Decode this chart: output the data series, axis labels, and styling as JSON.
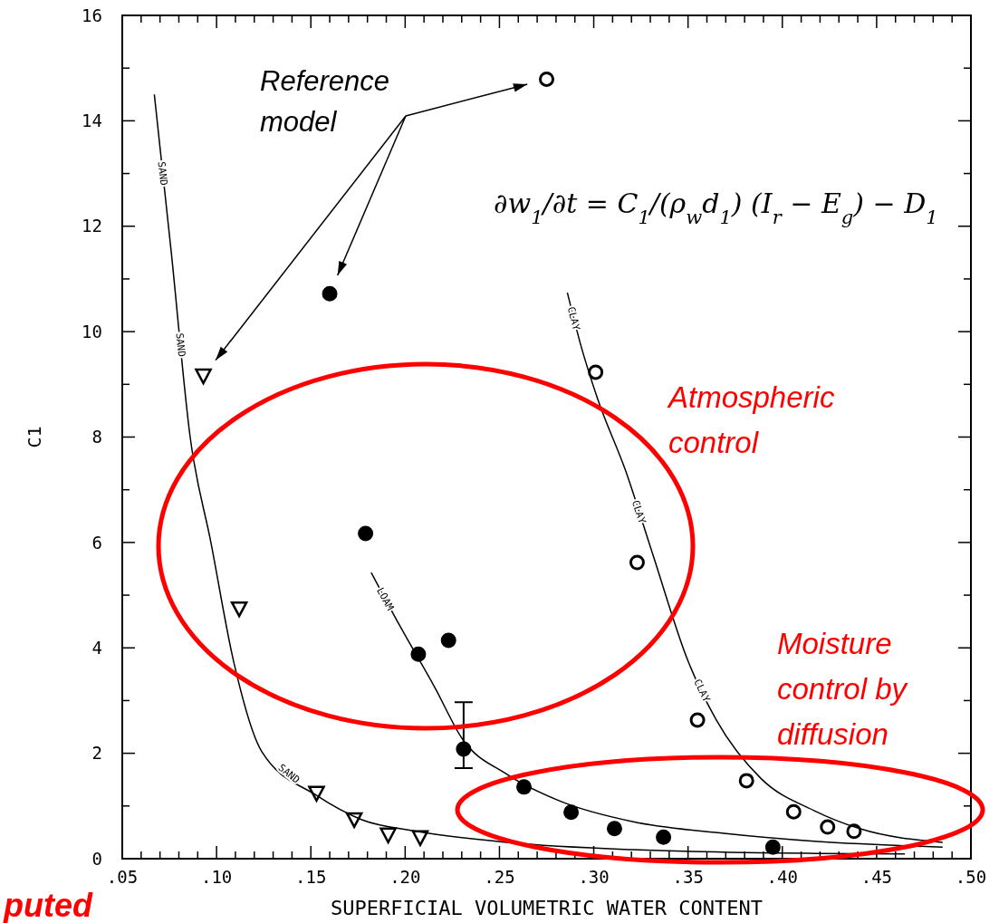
{
  "chart_data": {
    "type": "scatter",
    "xlabel": "SUPERFICIAL VOLUMETRIC WATER CONTENT",
    "ylabel": "C1",
    "xlim": [
      0.05,
      0.5
    ],
    "ylim": [
      0,
      16
    ],
    "xticks": [
      {
        "value": 0.05,
        "label": ".05"
      },
      {
        "value": 0.06,
        "label": null
      },
      {
        "value": 0.07,
        "label": null
      },
      {
        "value": 0.08,
        "label": null
      },
      {
        "value": 0.09,
        "label": null
      },
      {
        "value": 0.1,
        "label": ".10"
      },
      {
        "value": 0.11,
        "label": null
      },
      {
        "value": 0.12,
        "label": null
      },
      {
        "value": 0.13,
        "label": null
      },
      {
        "value": 0.14,
        "label": null
      },
      {
        "value": 0.15,
        "label": ".15"
      },
      {
        "value": 0.16,
        "label": null
      },
      {
        "value": 0.17,
        "label": null
      },
      {
        "value": 0.18,
        "label": null
      },
      {
        "value": 0.19,
        "label": null
      },
      {
        "value": 0.2,
        "label": ".20"
      },
      {
        "value": 0.21,
        "label": null
      },
      {
        "value": 0.22,
        "label": null
      },
      {
        "value": 0.23,
        "label": null
      },
      {
        "value": 0.24,
        "label": null
      },
      {
        "value": 0.25,
        "label": ".25"
      },
      {
        "value": 0.26,
        "label": null
      },
      {
        "value": 0.27,
        "label": null
      },
      {
        "value": 0.28,
        "label": null
      },
      {
        "value": 0.29,
        "label": null
      },
      {
        "value": 0.3,
        "label": ".30"
      },
      {
        "value": 0.31,
        "label": null
      },
      {
        "value": 0.32,
        "label": null
      },
      {
        "value": 0.33,
        "label": null
      },
      {
        "value": 0.34,
        "label": null
      },
      {
        "value": 0.35,
        "label": ".35"
      },
      {
        "value": 0.36,
        "label": null
      },
      {
        "value": 0.37,
        "label": null
      },
      {
        "value": 0.38,
        "label": null
      },
      {
        "value": 0.39,
        "label": null
      },
      {
        "value": 0.4,
        "label": ".40"
      },
      {
        "value": 0.41,
        "label": null
      },
      {
        "value": 0.42,
        "label": null
      },
      {
        "value": 0.43,
        "label": null
      },
      {
        "value": 0.44,
        "label": null
      },
      {
        "value": 0.45,
        "label": ".45"
      },
      {
        "value": 0.46,
        "label": null
      },
      {
        "value": 0.47,
        "label": null
      },
      {
        "value": 0.48,
        "label": null
      },
      {
        "value": 0.49,
        "label": null
      },
      {
        "value": 0.5,
        "label": ".50"
      }
    ],
    "yticks": [
      0,
      {
        "value": 1,
        "label": null
      },
      2,
      {
        "value": 3,
        "label": null
      },
      4,
      {
        "value": 5,
        "label": null
      },
      6,
      {
        "value": 7,
        "label": null
      },
      8,
      {
        "value": 9,
        "label": null
      },
      10,
      {
        "value": 11,
        "label": null
      },
      12,
      {
        "value": 13,
        "label": null
      },
      14,
      {
        "value": 15,
        "label": null
      },
      16
    ],
    "grid": false,
    "series": [
      {
        "marker": "triangle",
        "color": "#ffffff",
        "x": [
          0.093,
          0.112,
          0.153,
          0.173,
          0.191,
          0.208
        ],
        "values": [
          9.16,
          4.74,
          1.24,
          0.74,
          0.45,
          0.4
        ]
      },
      {
        "marker": "circle",
        "color": "#000000",
        "x": [
          0.16,
          0.179,
          0.207,
          0.223,
          0.231,
          0.263,
          0.288,
          0.311,
          0.337,
          0.395
        ],
        "values": [
          10.72,
          6.17,
          3.88,
          4.14,
          2.08,
          1.36,
          0.88,
          0.57,
          0.41,
          0.22
        ],
        "errors": [
          null,
          null,
          null,
          null,
          [
            1.72,
            2.97
          ],
          null,
          null,
          null,
          null,
          null
        ]
      },
      {
        "marker": "circle",
        "color": "#ffffff",
        "x": [
          0.275,
          0.301,
          0.323,
          0.355,
          0.381,
          0.406,
          0.424,
          0.438
        ],
        "values": [
          14.79,
          9.23,
          5.62,
          2.63,
          1.48,
          0.89,
          0.6,
          0.52
        ]
      },
      {
        "type": "line",
        "name": "SAND",
        "color": "#000000",
        "x": [
          0.067,
          0.076,
          0.086,
          0.097,
          0.109,
          0.124,
          0.153,
          0.177,
          0.206,
          0.254,
          0.321,
          0.417,
          0.465
        ],
        "values": [
          14.5,
          11.5,
          8.0,
          6.0,
          3.75,
          2.03,
          1.2,
          0.74,
          0.52,
          0.31,
          0.17,
          0.1,
          0.09
        ]
      },
      {
        "type": "line",
        "name": "LOAM",
        "color": "#000000",
        "x": [
          0.182,
          0.197,
          0.216,
          0.23,
          0.254,
          0.283,
          0.321,
          0.369,
          0.417,
          0.485
        ],
        "values": [
          5.43,
          4.43,
          3.23,
          2.29,
          1.6,
          1.08,
          0.7,
          0.48,
          0.33,
          0.22
        ]
      },
      {
        "type": "line",
        "name": "CLAY",
        "color": "#000000",
        "x": [
          0.286,
          0.293,
          0.302,
          0.317,
          0.331,
          0.35,
          0.365,
          0.389,
          0.417,
          0.441,
          0.485
        ],
        "values": [
          10.74,
          9.76,
          8.73,
          7.35,
          5.81,
          3.75,
          2.63,
          1.51,
          0.91,
          0.57,
          0.31
        ]
      }
    ],
    "annotations": [
      "Reference model",
      "∂w$_{1}$/∂t = C$_{1}$/(ρ$_{w}$d$_{1}$) (I$_{r}$ − E$_{g}$) − D$_{1}$",
      "Atmospheric control",
      "Moisture control by diffusion",
      "puted"
    ]
  }
}
